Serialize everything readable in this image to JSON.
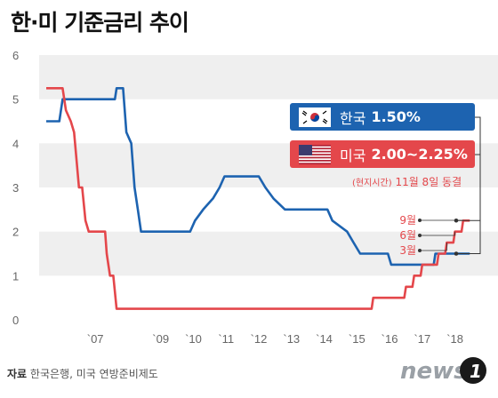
{
  "title": "한·미 기준금리 추이",
  "source": {
    "label": "자료",
    "text": "한국은행, 미국 연방준비제도"
  },
  "logo": {
    "text": "news1"
  },
  "colors": {
    "korea": "#1d63b0",
    "us": "#e4474b",
    "grid": "#efefef",
    "connector": "#333333"
  },
  "legend": {
    "korea": {
      "label": "한국",
      "rate": "1.50%",
      "flag_icon": "korea-flag-icon"
    },
    "us": {
      "label": "미국",
      "rate": "2.00~2.25%",
      "flag_icon": "us-flag-icon"
    }
  },
  "note": {
    "prefix": "(현지시간)",
    "text": "11월 8일 동결"
  },
  "chart_data": {
    "type": "line",
    "x_label_range": [
      2006,
      2019
    ],
    "ylim": [
      0,
      6
    ],
    "yticks": [
      0,
      1,
      2,
      3,
      4,
      5,
      6
    ],
    "grid": true,
    "xticks": [
      {
        "label": "`07",
        "value": 2007.5
      },
      {
        "label": "`09",
        "value": 2009.5
      },
      {
        "label": "`10",
        "value": 2010.5
      },
      {
        "label": "`11",
        "value": 2011.5
      },
      {
        "label": "`12",
        "value": 2012.5
      },
      {
        "label": "`13",
        "value": 2013.5
      },
      {
        "label": "`14",
        "value": 2014.5
      },
      {
        "label": "`15",
        "value": 2015.5
      },
      {
        "label": "`16",
        "value": 2016.5
      },
      {
        "label": "`17",
        "value": 2017.5
      },
      {
        "label": "`18",
        "value": 2018.5
      }
    ],
    "annotations": [
      {
        "label": "9월",
        "series": "us",
        "x": 2018.75,
        "y": 2.25
      },
      {
        "label": "6월",
        "series": "us",
        "x": 2018.5,
        "y": 2.0
      },
      {
        "label": "3월",
        "series": "us",
        "x": 2018.25,
        "y": 1.75
      }
    ],
    "series": [
      {
        "name": "한국",
        "key": "korea",
        "points": [
          [
            2006.0,
            4.5
          ],
          [
            2006.4,
            4.5
          ],
          [
            2006.5,
            5.0
          ],
          [
            2007.5,
            5.0
          ],
          [
            2008.1,
            5.0
          ],
          [
            2008.15,
            5.25
          ],
          [
            2008.35,
            5.25
          ],
          [
            2008.45,
            4.25
          ],
          [
            2008.6,
            4.0
          ],
          [
            2008.7,
            3.0
          ],
          [
            2008.8,
            2.5
          ],
          [
            2008.9,
            2.0
          ],
          [
            2010.4,
            2.0
          ],
          [
            2010.55,
            2.25
          ],
          [
            2010.8,
            2.5
          ],
          [
            2011.1,
            2.75
          ],
          [
            2011.3,
            3.0
          ],
          [
            2011.45,
            3.25
          ],
          [
            2012.5,
            3.25
          ],
          [
            2012.7,
            3.0
          ],
          [
            2012.95,
            2.75
          ],
          [
            2013.3,
            2.5
          ],
          [
            2014.6,
            2.5
          ],
          [
            2014.75,
            2.25
          ],
          [
            2015.2,
            2.0
          ],
          [
            2015.4,
            1.75
          ],
          [
            2015.6,
            1.5
          ],
          [
            2016.45,
            1.5
          ],
          [
            2016.55,
            1.25
          ],
          [
            2017.85,
            1.25
          ],
          [
            2017.9,
            1.5
          ],
          [
            2018.95,
            1.5
          ]
        ]
      },
      {
        "name": "미국",
        "key": "us",
        "points": [
          [
            2006.0,
            5.25
          ],
          [
            2006.5,
            5.25
          ],
          [
            2006.6,
            4.75
          ],
          [
            2006.75,
            4.5
          ],
          [
            2006.85,
            4.25
          ],
          [
            2007.0,
            3.0
          ],
          [
            2007.1,
            3.0
          ],
          [
            2007.2,
            2.25
          ],
          [
            2007.3,
            2.0
          ],
          [
            2007.8,
            2.0
          ],
          [
            2007.85,
            1.5
          ],
          [
            2007.95,
            1.0
          ],
          [
            2008.05,
            1.0
          ],
          [
            2008.15,
            0.25
          ],
          [
            2015.95,
            0.25
          ],
          [
            2016.0,
            0.5
          ],
          [
            2016.95,
            0.5
          ],
          [
            2017.0,
            0.75
          ],
          [
            2017.2,
            0.75
          ],
          [
            2017.25,
            1.0
          ],
          [
            2017.45,
            1.0
          ],
          [
            2017.5,
            1.25
          ],
          [
            2017.95,
            1.25
          ],
          [
            2018.0,
            1.5
          ],
          [
            2018.2,
            1.5
          ],
          [
            2018.25,
            1.75
          ],
          [
            2018.45,
            1.75
          ],
          [
            2018.5,
            2.0
          ],
          [
            2018.7,
            2.0
          ],
          [
            2018.75,
            2.25
          ],
          [
            2018.95,
            2.25
          ]
        ]
      }
    ]
  }
}
